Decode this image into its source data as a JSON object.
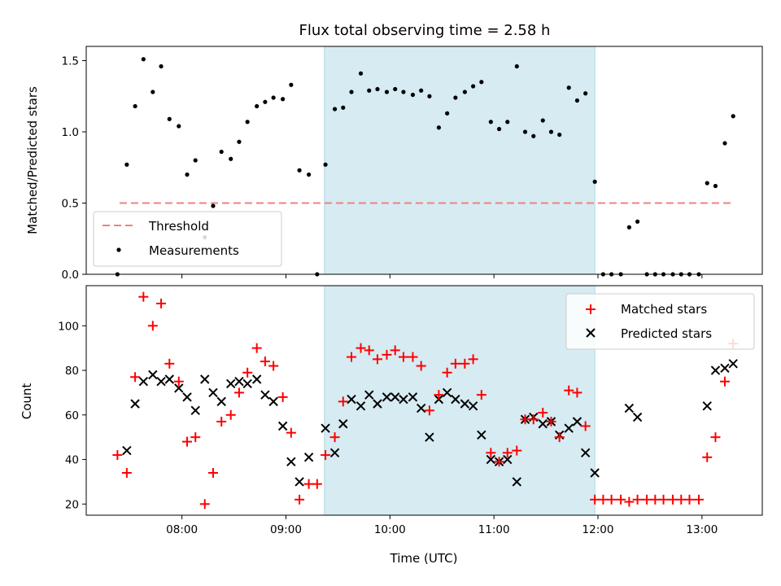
{
  "chart_data": {
    "type": "scatter",
    "title": "Flux total observing time = 2.58 h",
    "xlabel": "Time (UTC)",
    "x_ticks": [
      "08:00",
      "09:00",
      "10:00",
      "11:00",
      "12:00",
      "13:00"
    ],
    "x_tick_hours": [
      8,
      9,
      10,
      11,
      12,
      13
    ],
    "xlim_hours": [
      7.08,
      13.58
    ],
    "observing_window_hours": [
      9.37,
      11.97
    ],
    "colors": {
      "threshold": "#f08080",
      "measurements": "#000000",
      "matched": "#ff0000",
      "predicted": "#000000",
      "window": "#add8e6"
    },
    "panels": [
      {
        "ylabel": "Matched/Predicted stars",
        "ylim": [
          0,
          1.6
        ],
        "yticks": [
          0.0,
          0.5,
          1.0,
          1.5
        ],
        "ytick_labels": [
          "0.0",
          "0.5",
          "1.0",
          "1.5"
        ],
        "legend": [
          "Threshold",
          "Measurements"
        ],
        "legend_loc": "lower-left",
        "threshold": {
          "name": "Threshold",
          "value": 0.5,
          "x_range_hours": [
            7.4,
            13.3
          ]
        },
        "series": [
          {
            "name": "Measurements",
            "marker": "dot",
            "points": [
              [
                7.38,
                0.0
              ],
              [
                7.47,
                0.77
              ],
              [
                7.55,
                1.18
              ],
              [
                7.63,
                1.51
              ],
              [
                7.72,
                1.28
              ],
              [
                7.8,
                1.46
              ],
              [
                7.88,
                1.09
              ],
              [
                7.97,
                1.04
              ],
              [
                8.05,
                0.7
              ],
              [
                8.13,
                0.8
              ],
              [
                8.22,
                0.26
              ],
              [
                8.3,
                0.48
              ],
              [
                8.38,
                0.86
              ],
              [
                8.47,
                0.81
              ],
              [
                8.55,
                0.93
              ],
              [
                8.63,
                1.07
              ],
              [
                8.72,
                1.18
              ],
              [
                8.8,
                1.21
              ],
              [
                8.88,
                1.24
              ],
              [
                8.97,
                1.23
              ],
              [
                9.05,
                1.33
              ],
              [
                9.13,
                0.73
              ],
              [
                9.22,
                0.7
              ],
              [
                9.3,
                0.0
              ],
              [
                9.38,
                0.77
              ],
              [
                9.47,
                1.16
              ],
              [
                9.55,
                1.17
              ],
              [
                9.63,
                1.28
              ],
              [
                9.72,
                1.41
              ],
              [
                9.8,
                1.29
              ],
              [
                9.88,
                1.3
              ],
              [
                9.97,
                1.28
              ],
              [
                10.05,
                1.3
              ],
              [
                10.13,
                1.28
              ],
              [
                10.22,
                1.26
              ],
              [
                10.3,
                1.29
              ],
              [
                10.38,
                1.25
              ],
              [
                10.47,
                1.03
              ],
              [
                10.55,
                1.13
              ],
              [
                10.63,
                1.24
              ],
              [
                10.72,
                1.28
              ],
              [
                10.8,
                1.32
              ],
              [
                10.88,
                1.35
              ],
              [
                10.97,
                1.07
              ],
              [
                11.05,
                1.02
              ],
              [
                11.13,
                1.07
              ],
              [
                11.22,
                1.46
              ],
              [
                11.3,
                1.0
              ],
              [
                11.38,
                0.97
              ],
              [
                11.47,
                1.08
              ],
              [
                11.55,
                1.0
              ],
              [
                11.63,
                0.98
              ],
              [
                11.72,
                1.31
              ],
              [
                11.8,
                1.22
              ],
              [
                11.88,
                1.27
              ],
              [
                11.97,
                0.65
              ],
              [
                12.05,
                0.0
              ],
              [
                12.13,
                0.0
              ],
              [
                12.22,
                0.0
              ],
              [
                12.3,
                0.33
              ],
              [
                12.38,
                0.37
              ],
              [
                12.47,
                0.0
              ],
              [
                12.55,
                0.0
              ],
              [
                12.63,
                0.0
              ],
              [
                12.72,
                0.0
              ],
              [
                12.8,
                0.0
              ],
              [
                12.88,
                0.0
              ],
              [
                12.97,
                0.0
              ],
              [
                13.05,
                0.64
              ],
              [
                13.13,
                0.62
              ],
              [
                13.22,
                0.92
              ],
              [
                13.3,
                1.11
              ]
            ]
          }
        ]
      },
      {
        "ylabel": "Count",
        "ylim": [
          15,
          118
        ],
        "yticks": [
          20,
          40,
          60,
          80,
          100
        ],
        "ytick_labels": [
          "20",
          "40",
          "60",
          "80",
          "100"
        ],
        "legend": [
          "Matched stars",
          "Predicted stars"
        ],
        "legend_loc": "upper-right",
        "series": [
          {
            "name": "Matched stars",
            "marker": "plus",
            "points": [
              [
                7.38,
                42
              ],
              [
                7.47,
                34
              ],
              [
                7.55,
                77
              ],
              [
                7.63,
                113
              ],
              [
                7.72,
                100
              ],
              [
                7.8,
                110
              ],
              [
                7.88,
                83
              ],
              [
                7.97,
                75
              ],
              [
                8.05,
                48
              ],
              [
                8.13,
                50
              ],
              [
                8.22,
                20
              ],
              [
                8.3,
                34
              ],
              [
                8.38,
                57
              ],
              [
                8.47,
                60
              ],
              [
                8.55,
                70
              ],
              [
                8.63,
                79
              ],
              [
                8.72,
                90
              ],
              [
                8.8,
                84
              ],
              [
                8.88,
                82
              ],
              [
                8.97,
                68
              ],
              [
                9.05,
                52
              ],
              [
                9.13,
                22
              ],
              [
                9.22,
                29
              ],
              [
                9.3,
                29
              ],
              [
                9.38,
                42
              ],
              [
                9.47,
                50
              ],
              [
                9.55,
                66
              ],
              [
                9.63,
                86
              ],
              [
                9.72,
                90
              ],
              [
                9.8,
                89
              ],
              [
                9.88,
                85
              ],
              [
                9.97,
                87
              ],
              [
                10.05,
                89
              ],
              [
                10.13,
                86
              ],
              [
                10.22,
                86
              ],
              [
                10.3,
                82
              ],
              [
                10.38,
                62
              ],
              [
                10.47,
                69
              ],
              [
                10.55,
                79
              ],
              [
                10.63,
                83
              ],
              [
                10.72,
                83
              ],
              [
                10.8,
                85
              ],
              [
                10.88,
                69
              ],
              [
                10.97,
                43
              ],
              [
                11.05,
                39
              ],
              [
                11.13,
                43
              ],
              [
                11.22,
                44
              ],
              [
                11.3,
                58
              ],
              [
                11.38,
                58
              ],
              [
                11.47,
                61
              ],
              [
                11.55,
                57
              ],
              [
                11.63,
                50
              ],
              [
                11.72,
                71
              ],
              [
                11.8,
                70
              ],
              [
                11.88,
                55
              ],
              [
                11.97,
                22
              ],
              [
                12.05,
                22
              ],
              [
                12.13,
                22
              ],
              [
                12.22,
                22
              ],
              [
                12.3,
                21
              ],
              [
                12.38,
                22
              ],
              [
                12.47,
                22
              ],
              [
                12.55,
                22
              ],
              [
                12.63,
                22
              ],
              [
                12.72,
                22
              ],
              [
                12.8,
                22
              ],
              [
                12.88,
                22
              ],
              [
                12.97,
                22
              ],
              [
                13.05,
                41
              ],
              [
                13.13,
                50
              ],
              [
                13.22,
                75
              ],
              [
                13.3,
                92
              ]
            ]
          },
          {
            "name": "Predicted stars",
            "marker": "x",
            "points": [
              [
                7.47,
                44
              ],
              [
                7.55,
                65
              ],
              [
                7.63,
                75
              ],
              [
                7.72,
                78
              ],
              [
                7.8,
                75
              ],
              [
                7.88,
                76
              ],
              [
                7.97,
                72
              ],
              [
                8.05,
                68
              ],
              [
                8.13,
                62
              ],
              [
                8.22,
                76
              ],
              [
                8.3,
                70
              ],
              [
                8.38,
                66
              ],
              [
                8.47,
                74
              ],
              [
                8.55,
                75
              ],
              [
                8.63,
                74
              ],
              [
                8.72,
                76
              ],
              [
                8.8,
                69
              ],
              [
                8.88,
                66
              ],
              [
                8.97,
                55
              ],
              [
                9.05,
                39
              ],
              [
                9.13,
                30
              ],
              [
                9.22,
                41
              ],
              [
                9.38,
                54
              ],
              [
                9.47,
                43
              ],
              [
                9.55,
                56
              ],
              [
                9.63,
                67
              ],
              [
                9.72,
                64
              ],
              [
                9.8,
                69
              ],
              [
                9.88,
                65
              ],
              [
                9.97,
                68
              ],
              [
                10.05,
                68
              ],
              [
                10.13,
                67
              ],
              [
                10.22,
                68
              ],
              [
                10.3,
                63
              ],
              [
                10.38,
                50
              ],
              [
                10.47,
                67
              ],
              [
                10.55,
                70
              ],
              [
                10.63,
                67
              ],
              [
                10.72,
                65
              ],
              [
                10.8,
                64
              ],
              [
                10.88,
                51
              ],
              [
                10.97,
                40
              ],
              [
                11.05,
                39
              ],
              [
                11.13,
                40
              ],
              [
                11.22,
                30
              ],
              [
                11.3,
                58
              ],
              [
                11.38,
                59
              ],
              [
                11.47,
                56
              ],
              [
                11.55,
                57
              ],
              [
                11.63,
                51
              ],
              [
                11.72,
                54
              ],
              [
                11.8,
                57
              ],
              [
                11.88,
                43
              ],
              [
                11.97,
                34
              ],
              [
                12.3,
                63
              ],
              [
                12.38,
                59
              ],
              [
                13.05,
                64
              ],
              [
                13.13,
                80
              ],
              [
                13.22,
                81
              ],
              [
                13.3,
                83
              ]
            ]
          }
        ]
      }
    ]
  }
}
